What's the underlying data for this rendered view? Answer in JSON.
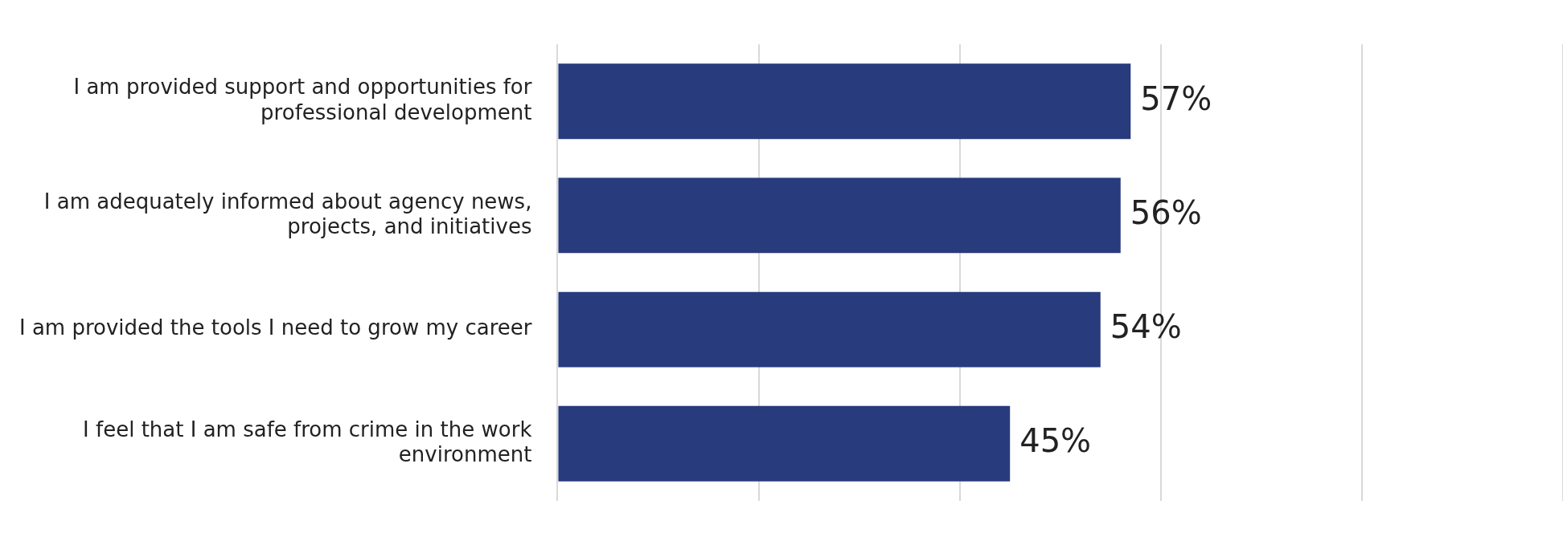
{
  "chart_data": {
    "type": "bar",
    "orientation": "horizontal",
    "categories": [
      "I am provided support and opportunities for professional development",
      "I am adequately informed about agency news, projects, and initiatives",
      "I am provided the tools I need to grow my career",
      "I feel that I am safe from crime in the work environment"
    ],
    "values": [
      57,
      56,
      54,
      45
    ],
    "color": "#273b7d",
    "xlim": [
      0,
      100
    ],
    "xticks": [
      {
        "value": 0,
        "label": null
      },
      {
        "value": 20,
        "label": null
      },
      {
        "value": 40,
        "label": null
      },
      {
        "value": 60,
        "label": null
      },
      {
        "value": 80,
        "label": null
      },
      {
        "value": 100,
        "label": null
      }
    ],
    "grid": "x",
    "tick_labels": "y",
    "data_labels": true,
    "value_labels": [
      "57%",
      "56%",
      "54%",
      "45%"
    ],
    "legend": false
  }
}
